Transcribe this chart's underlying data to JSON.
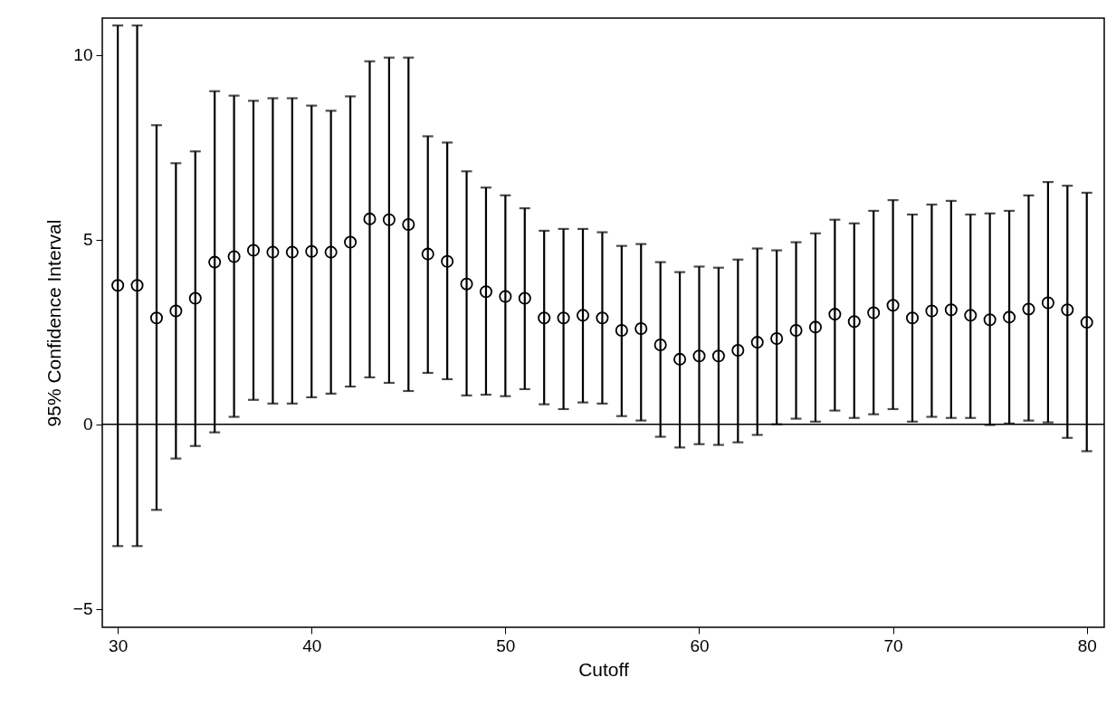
{
  "chart_data": {
    "type": "scatter",
    "xlabel": "Cutoff",
    "ylabel": "95% Confidence Interval",
    "color": "#000000",
    "marker": "circle",
    "x": [
      30,
      31,
      32,
      33,
      34,
      35,
      36,
      37,
      38,
      39,
      40,
      41,
      42,
      43,
      44,
      45,
      46,
      47,
      48,
      49,
      50,
      51,
      52,
      53,
      54,
      55,
      56,
      57,
      58,
      59,
      60,
      61,
      62,
      63,
      64,
      65,
      66,
      67,
      68,
      69,
      70,
      71,
      72,
      73,
      74,
      75,
      76,
      77,
      78,
      79,
      80
    ],
    "values": [
      3.76,
      3.76,
      2.88,
      3.07,
      3.41,
      4.39,
      4.54,
      4.71,
      4.66,
      4.66,
      4.68,
      4.66,
      4.93,
      5.56,
      5.54,
      5.41,
      4.61,
      4.41,
      3.8,
      3.59,
      3.46,
      3.41,
      2.88,
      2.88,
      2.95,
      2.88,
      2.54,
      2.59,
      2.15,
      1.76,
      1.85,
      1.85,
      2.0,
      2.22,
      2.32,
      2.54,
      2.63,
      2.98,
      2.78,
      3.02,
      3.22,
      2.88,
      3.07,
      3.1,
      2.95,
      2.83,
      2.9,
      3.12,
      3.29,
      3.1,
      2.76
    ],
    "errors": [
      [
        -3.3,
        10.8
      ],
      [
        -3.3,
        10.8
      ],
      [
        -2.32,
        8.1
      ],
      [
        -0.93,
        7.07
      ],
      [
        -0.59,
        7.39
      ],
      [
        -0.22,
        9.02
      ],
      [
        0.2,
        8.9
      ],
      [
        0.66,
        8.76
      ],
      [
        0.56,
        8.83
      ],
      [
        0.56,
        8.83
      ],
      [
        0.73,
        8.63
      ],
      [
        0.83,
        8.49
      ],
      [
        1.02,
        8.88
      ],
      [
        1.27,
        9.83
      ],
      [
        1.12,
        9.93
      ],
      [
        0.9,
        9.93
      ],
      [
        1.39,
        7.8
      ],
      [
        1.22,
        7.63
      ],
      [
        0.78,
        6.85
      ],
      [
        0.8,
        6.41
      ],
      [
        0.76,
        6.2
      ],
      [
        0.95,
        5.85
      ],
      [
        0.54,
        5.24
      ],
      [
        0.41,
        5.29
      ],
      [
        0.59,
        5.29
      ],
      [
        0.56,
        5.2
      ],
      [
        0.22,
        4.83
      ],
      [
        0.1,
        4.88
      ],
      [
        -0.34,
        4.39
      ],
      [
        -0.63,
        4.12
      ],
      [
        -0.54,
        4.27
      ],
      [
        -0.56,
        4.24
      ],
      [
        -0.49,
        4.46
      ],
      [
        -0.29,
        4.76
      ],
      [
        0.0,
        4.71
      ],
      [
        0.15,
        4.93
      ],
      [
        0.07,
        5.17
      ],
      [
        0.37,
        5.54
      ],
      [
        0.17,
        5.44
      ],
      [
        0.27,
        5.78
      ],
      [
        0.41,
        6.07
      ],
      [
        0.07,
        5.68
      ],
      [
        0.2,
        5.95
      ],
      [
        0.17,
        6.05
      ],
      [
        0.17,
        5.68
      ],
      [
        -0.02,
        5.71
      ],
      [
        0.02,
        5.78
      ],
      [
        0.1,
        6.2
      ],
      [
        0.05,
        6.56
      ],
      [
        -0.37,
        6.46
      ],
      [
        -0.73,
        6.27
      ]
    ],
    "xlim": [
      29.2,
      80.9
    ],
    "ylim": [
      -5.5,
      11
    ],
    "xticks": [
      30,
      40,
      50,
      60,
      70,
      80
    ],
    "yticks": [
      -5,
      0,
      5,
      10
    ],
    "ref_lines": [
      {
        "axis": "y",
        "value": 0,
        "label": null
      }
    ]
  }
}
